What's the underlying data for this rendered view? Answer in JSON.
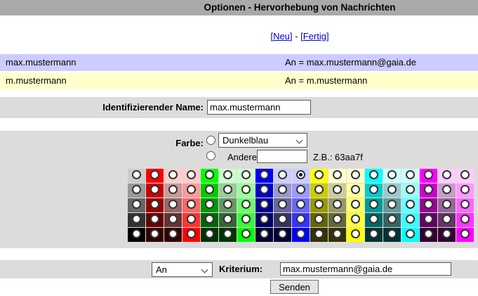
{
  "title": "Optionen - Hervorhebung von Nachrichten",
  "links": {
    "bracket_open": "[",
    "neu": "Neu",
    "between": "] - [",
    "fertig": "Fertig",
    "bracket_close": "]"
  },
  "rules": [
    {
      "name": "max.mustermann",
      "condition": "An = max.mustermann@gaia.de",
      "bg": "#ccccff"
    },
    {
      "name": "m.mustermann",
      "condition": "An = m.mustermann",
      "bg": "#ffffcc"
    }
  ],
  "identify": {
    "label": "Identifizierender Name:",
    "value": "max.mustermann"
  },
  "color_section": {
    "label": "Farbe:",
    "dropdown_value": "Dunkelblau",
    "other_label": "Andere:",
    "other_value": "",
    "example": "Z.B.: 63aa7f",
    "grid": {
      "selected": {
        "row": 0,
        "col": 9
      },
      "rows": [
        [
          "cccccc",
          "ff0000",
          "ffcccc",
          "ffcccc",
          "00ff00",
          "ccffcc",
          "ccffcc",
          "0000ff",
          "ccccff",
          "ccccff",
          "ffff00",
          "ffffcc",
          "ffffcc",
          "00ffff",
          "ccffff",
          "ccffff",
          "ff00ff",
          "ffccff",
          "ffccff"
        ],
        [
          "999999",
          "cc0000",
          "cc9999",
          "ff9999",
          "00cc00",
          "99cc99",
          "99ff99",
          "0000cc",
          "9999cc",
          "9999ff",
          "cccc00",
          "cccc99",
          "ffff99",
          "00cccc",
          "99cccc",
          "99ffff",
          "cc00cc",
          "cc99cc",
          "ff99ff"
        ],
        [
          "666666",
          "990000",
          "996666",
          "ff6666",
          "009900",
          "669966",
          "66ff66",
          "000099",
          "666699",
          "6666ff",
          "999900",
          "999966",
          "ffff66",
          "009999",
          "669999",
          "66ffff",
          "990099",
          "996699",
          "ff66ff"
        ],
        [
          "333333",
          "660000",
          "663333",
          "ff3333",
          "006600",
          "336633",
          "33ff33",
          "000066",
          "333366",
          "3333ff",
          "666600",
          "666633",
          "ffff33",
          "006666",
          "336666",
          "33ffff",
          "660066",
          "663366",
          "ff33ff"
        ],
        [
          "000000",
          "330000",
          "330000",
          "ff0000",
          "003300",
          "003300",
          "00ff00",
          "000033",
          "000033",
          "0000ff",
          "333300",
          "333300",
          "ffff00",
          "003333",
          "003333",
          "00ffff",
          "330033",
          "330033",
          "ff00ff"
        ]
      ]
    }
  },
  "criteria": {
    "dropdown_value": "An",
    "label": "Kriterium:",
    "value": "max.mustermann@gaia.de"
  },
  "submit_label": "Senden",
  "colors": {
    "title_bar": "#a9a9a9",
    "section_bg": "#dcdcdc",
    "link": "#0000cc"
  }
}
